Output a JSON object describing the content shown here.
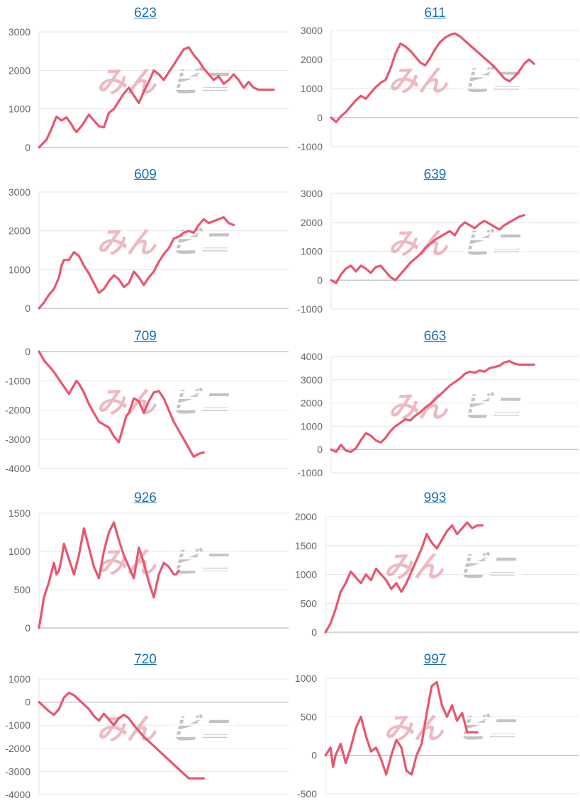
{
  "colors": {
    "line": "#e8566f",
    "grid": "#e6e6e6",
    "zero": "#bdbdbd",
    "tick": "#666666",
    "title": "#1a6fb5"
  },
  "watermark": {
    "text_left": "みん",
    "text_right": "ビニ",
    "color_left": "#e9a3ad",
    "color_right": "#b0b0b0"
  },
  "chart_data": [
    {
      "type": "line",
      "title": "623",
      "yticks": [
        0,
        1000,
        2000,
        3000
      ],
      "ylim": [
        0,
        3000
      ],
      "xlim": [
        0,
        100
      ],
      "x": [
        0,
        3,
        5,
        7,
        9,
        11,
        13,
        14,
        15,
        17,
        18,
        19,
        20,
        22,
        24,
        26,
        28,
        30,
        32,
        34,
        36,
        38,
        40,
        42,
        44,
        46,
        48,
        50,
        52,
        54,
        56,
        58,
        60,
        62,
        64,
        66,
        68,
        70,
        72,
        74,
        76,
        78,
        80,
        82,
        84,
        86,
        88,
        90,
        92,
        94
      ],
      "y": [
        0,
        200,
        480,
        800,
        700,
        780,
        600,
        480,
        400,
        550,
        650,
        750,
        850,
        700,
        550,
        520,
        900,
        1000,
        1200,
        1400,
        1550,
        1350,
        1150,
        1450,
        1700,
        2000,
        1900,
        1750,
        1950,
        2150,
        2350,
        2550,
        2600,
        2400,
        2250,
        2050,
        1900,
        1750,
        1850,
        1650,
        1750,
        1900,
        1750,
        1550,
        1700,
        1550,
        1500,
        1500,
        1500,
        1500
      ]
    },
    {
      "type": "line",
      "title": "611",
      "yticks": [
        -1000,
        0,
        1000,
        2000,
        3000
      ],
      "ylim": [
        -1000,
        3000
      ],
      "xlim": [
        0,
        100
      ],
      "x": [
        0,
        2,
        4,
        6,
        8,
        10,
        12,
        14,
        16,
        18,
        20,
        22,
        24,
        26,
        28,
        30,
        32,
        34,
        36,
        38,
        40,
        42,
        44,
        46,
        48,
        50,
        52,
        54,
        56,
        58,
        60,
        62,
        64,
        66,
        68,
        70,
        72,
        74,
        76,
        78,
        80,
        82
      ],
      "y": [
        0,
        -150,
        50,
        200,
        400,
        600,
        750,
        650,
        850,
        1050,
        1200,
        1300,
        1700,
        2200,
        2550,
        2450,
        2300,
        2100,
        1900,
        1800,
        2050,
        2350,
        2600,
        2750,
        2850,
        2900,
        2800,
        2650,
        2500,
        2350,
        2200,
        2050,
        1900,
        1750,
        1550,
        1350,
        1250,
        1400,
        1600,
        1850,
        2000,
        1850
      ]
    },
    {
      "type": "line",
      "title": "609",
      "yticks": [
        0,
        1000,
        2000,
        3000
      ],
      "ylim": [
        0,
        3000
      ],
      "xlim": [
        0,
        100
      ],
      "x": [
        0,
        2,
        4,
        6,
        8,
        9,
        10,
        12,
        13,
        14,
        16,
        18,
        20,
        22,
        24,
        26,
        28,
        30,
        32,
        34,
        36,
        38,
        40,
        42,
        44,
        46,
        48,
        50,
        52,
        54,
        56,
        58,
        60,
        62,
        64,
        66,
        68,
        70,
        72,
        74,
        76,
        78
      ],
      "y": [
        0,
        150,
        350,
        500,
        800,
        1100,
        1250,
        1250,
        1350,
        1450,
        1350,
        1100,
        900,
        650,
        400,
        500,
        700,
        850,
        750,
        550,
        650,
        950,
        800,
        600,
        800,
        950,
        1200,
        1400,
        1550,
        1800,
        1850,
        1950,
        2000,
        1950,
        2150,
        2300,
        2200,
        2250,
        2300,
        2350,
        2200,
        2150
      ]
    },
    {
      "type": "line",
      "title": "639",
      "yticks": [
        -1000,
        0,
        1000,
        2000,
        3000
      ],
      "ylim": [
        -1000,
        3000
      ],
      "xlim": [
        0,
        100
      ],
      "x": [
        0,
        2,
        4,
        6,
        8,
        10,
        12,
        14,
        16,
        18,
        20,
        22,
        24,
        26,
        28,
        30,
        32,
        34,
        36,
        38,
        40,
        42,
        44,
        46,
        48,
        50,
        52,
        54,
        56,
        58,
        60,
        62,
        64,
        66,
        68,
        70,
        72,
        74,
        76,
        78
      ],
      "y": [
        0,
        -100,
        200,
        400,
        500,
        300,
        500,
        400,
        250,
        450,
        500,
        300,
        100,
        0,
        200,
        400,
        600,
        750,
        900,
        1100,
        1250,
        1400,
        1500,
        1600,
        1700,
        1550,
        1850,
        2000,
        1900,
        1800,
        1950,
        2050,
        1950,
        1850,
        1750,
        1900,
        2000,
        2100,
        2200,
        2250
      ]
    },
    {
      "type": "line",
      "title": "709",
      "yticks": [
        -4000,
        -3000,
        -2000,
        -1000,
        0
      ],
      "ylim": [
        -4000,
        0
      ],
      "xlim": [
        0,
        100
      ],
      "x": [
        0,
        2,
        4,
        6,
        8,
        10,
        12,
        14,
        15,
        16,
        18,
        20,
        22,
        24,
        26,
        28,
        30,
        32,
        34,
        35,
        36,
        38,
        40,
        42,
        44,
        46,
        48,
        50,
        52,
        54,
        56,
        58,
        60,
        62,
        64,
        66
      ],
      "y": [
        0,
        -300,
        -500,
        -700,
        -950,
        -1200,
        -1450,
        -1150,
        -1000,
        -1100,
        -1400,
        -1800,
        -2100,
        -2400,
        -2500,
        -2600,
        -2900,
        -3100,
        -2500,
        -2200,
        -2100,
        -1600,
        -1700,
        -2100,
        -1700,
        -1400,
        -1350,
        -1600,
        -2000,
        -2400,
        -2700,
        -3000,
        -3300,
        -3600,
        -3500,
        -3450
      ]
    },
    {
      "type": "line",
      "title": "663",
      "yticks": [
        -1000,
        0,
        1000,
        2000,
        3000,
        4000
      ],
      "ylim": [
        -1000,
        4000
      ],
      "xlim": [
        0,
        100
      ],
      "x": [
        0,
        2,
        4,
        6,
        8,
        10,
        12,
        14,
        16,
        18,
        20,
        22,
        24,
        26,
        28,
        30,
        32,
        34,
        36,
        38,
        40,
        42,
        44,
        46,
        48,
        50,
        52,
        54,
        56,
        58,
        60,
        62,
        64,
        66,
        68,
        70,
        72,
        74,
        76,
        78,
        80,
        82
      ],
      "y": [
        0,
        -100,
        200,
        -50,
        -100,
        50,
        400,
        700,
        600,
        400,
        300,
        500,
        800,
        1000,
        1150,
        1300,
        1250,
        1450,
        1600,
        1800,
        1950,
        2150,
        2350,
        2550,
        2750,
        2900,
        3050,
        3250,
        3350,
        3300,
        3400,
        3350,
        3500,
        3550,
        3600,
        3750,
        3800,
        3700,
        3650,
        3650,
        3650,
        3650
      ]
    },
    {
      "type": "line",
      "title": "926",
      "yticks": [
        0,
        500,
        1000,
        1500
      ],
      "ylim": [
        0,
        1500
      ],
      "xlim": [
        0,
        100
      ],
      "x": [
        0,
        2,
        4,
        6,
        7,
        8,
        9,
        10,
        12,
        14,
        16,
        18,
        20,
        22,
        24,
        26,
        28,
        30,
        32,
        34,
        36,
        38,
        40,
        42,
        44,
        46,
        48,
        50,
        52,
        54,
        55,
        56
      ],
      "y": [
        0,
        400,
        600,
        850,
        700,
        750,
        900,
        1100,
        900,
        700,
        950,
        1300,
        1050,
        800,
        650,
        1000,
        1250,
        1380,
        1150,
        950,
        800,
        650,
        1050,
        850,
        600,
        400,
        700,
        850,
        800,
        700,
        700,
        750
      ]
    },
    {
      "type": "line",
      "title": "993",
      "yticks": [
        0,
        500,
        1000,
        1500,
        2000
      ],
      "ylim": [
        0,
        2000
      ],
      "xlim": [
        0,
        100
      ],
      "x": [
        0,
        2,
        4,
        6,
        8,
        10,
        12,
        14,
        16,
        18,
        20,
        22,
        24,
        26,
        28,
        30,
        32,
        34,
        36,
        38,
        40,
        42,
        44,
        46,
        48,
        50,
        52,
        54,
        56,
        58,
        60,
        62
      ],
      "y": [
        0,
        150,
        400,
        700,
        850,
        1050,
        950,
        850,
        1000,
        900,
        1100,
        1000,
        900,
        750,
        850,
        700,
        850,
        1050,
        1250,
        1450,
        1700,
        1550,
        1450,
        1600,
        1750,
        1850,
        1700,
        1800,
        1900,
        1800,
        1850,
        1850
      ]
    },
    {
      "type": "line",
      "title": "720",
      "yticks": [
        -4000,
        -3000,
        -2000,
        -1000,
        0,
        1000
      ],
      "ylim": [
        -4000,
        1000
      ],
      "xlim": [
        0,
        100
      ],
      "x": [
        0,
        2,
        4,
        6,
        8,
        10,
        12,
        14,
        16,
        18,
        20,
        22,
        24,
        26,
        28,
        30,
        32,
        34,
        36,
        38,
        40,
        42,
        44,
        46,
        48,
        50,
        52,
        54,
        56,
        58,
        60,
        62,
        64,
        66
      ],
      "y": [
        0,
        -200,
        -400,
        -550,
        -300,
        200,
        400,
        300,
        100,
        -100,
        -300,
        -600,
        -800,
        -500,
        -750,
        -1000,
        -700,
        -550,
        -700,
        -1000,
        -1250,
        -1500,
        -1700,
        -1900,
        -2100,
        -2300,
        -2500,
        -2700,
        -2900,
        -3100,
        -3300,
        -3300,
        -3300,
        -3300
      ]
    },
    {
      "type": "line",
      "title": "997",
      "yticks": [
        -500,
        0,
        500,
        1000
      ],
      "ylim": [
        -500,
        1000
      ],
      "xlim": [
        0,
        100
      ],
      "x": [
        0,
        2,
        3,
        4,
        6,
        8,
        10,
        12,
        14,
        16,
        18,
        20,
        22,
        24,
        26,
        28,
        30,
        32,
        34,
        36,
        38,
        40,
        42,
        44,
        46,
        48,
        50,
        52,
        54,
        56,
        58,
        60
      ],
      "y": [
        0,
        100,
        -150,
        0,
        150,
        -100,
        100,
        350,
        500,
        250,
        50,
        100,
        -50,
        -250,
        0,
        200,
        100,
        -200,
        -250,
        0,
        150,
        550,
        900,
        950,
        650,
        500,
        650,
        450,
        550,
        300,
        300,
        300
      ]
    }
  ]
}
